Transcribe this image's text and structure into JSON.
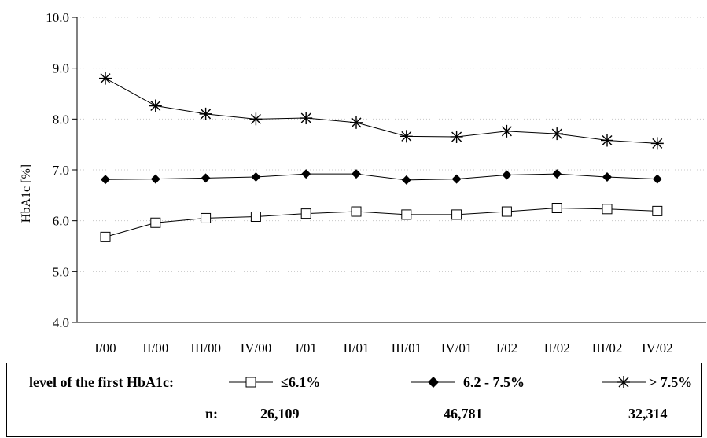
{
  "chart_data": {
    "type": "line",
    "categories": [
      "I/00",
      "II/00",
      "III/00",
      "IV/00",
      "I/01",
      "II/01",
      "III/01",
      "IV/01",
      "I/02",
      "II/02",
      "III/02",
      "IV/02"
    ],
    "ylabel": "HbA1c [%]",
    "ylim": [
      4.0,
      10.0
    ],
    "yticks": [
      "4.0",
      "5.0",
      "6.0",
      "7.0",
      "8.0",
      "9.0",
      "10.0"
    ],
    "grid": true,
    "series": [
      {
        "name": "≤6.1%",
        "marker": "open-square",
        "n": "26,109",
        "values": [
          5.68,
          5.96,
          6.05,
          6.08,
          6.14,
          6.18,
          6.12,
          6.12,
          6.18,
          6.25,
          6.23,
          6.19
        ]
      },
      {
        "name": "6.2 - 7.5%",
        "marker": "filled-diamond",
        "n": "46,781",
        "values": [
          6.81,
          6.82,
          6.84,
          6.86,
          6.92,
          6.92,
          6.8,
          6.82,
          6.9,
          6.92,
          6.86,
          6.82
        ]
      },
      {
        "name": "> 7.5%",
        "marker": "asterisk",
        "n": "32,314",
        "values": [
          8.8,
          8.26,
          8.1,
          8.0,
          8.02,
          7.93,
          7.66,
          7.65,
          7.76,
          7.71,
          7.58,
          7.52
        ]
      }
    ]
  },
  "legend": {
    "level_label": "level of the first HbA1c:",
    "n_label": "n:"
  }
}
